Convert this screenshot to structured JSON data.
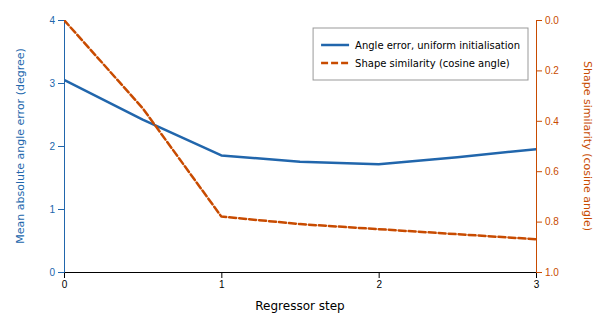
{
  "chart_data": {
    "type": "line",
    "xlabel": "Regressor step",
    "ylabel": "Mean absolute angle error (degree)",
    "y2label": "Shape similarity (cosine angle)",
    "x": [
      0,
      0.5,
      1.0,
      1.5,
      2.0,
      2.5,
      3.0
    ],
    "series": [
      {
        "name": "Angle error, uniform initialisation",
        "color": "#2166ac",
        "line_style": "solid",
        "values": [
          3.05,
          2.42,
          1.85,
          1.75,
          1.71,
          1.82,
          1.95
        ]
      },
      {
        "name": "Shape similarity (cosine angle)",
        "color": "#c84b00",
        "line_style": "dashed",
        "axis": "y2",
        "values": [
          0.0,
          0.35,
          0.78,
          0.81,
          0.83,
          0.85,
          0.87
        ]
      }
    ],
    "xlim": [
      0,
      3
    ],
    "xticks": [
      0,
      1,
      2,
      3
    ],
    "ylim": [
      0,
      4
    ],
    "yticks": [
      0,
      1,
      2,
      3,
      4
    ],
    "y2lim": [
      1,
      0
    ],
    "y2ticks": [
      {
        "value": 0,
        "label": "0.0"
      },
      0.2,
      0.4,
      0.6,
      0.8,
      {
        "value": 1,
        "label": "1.0"
      }
    ],
    "legend": "upper right",
    "grid": false
  }
}
